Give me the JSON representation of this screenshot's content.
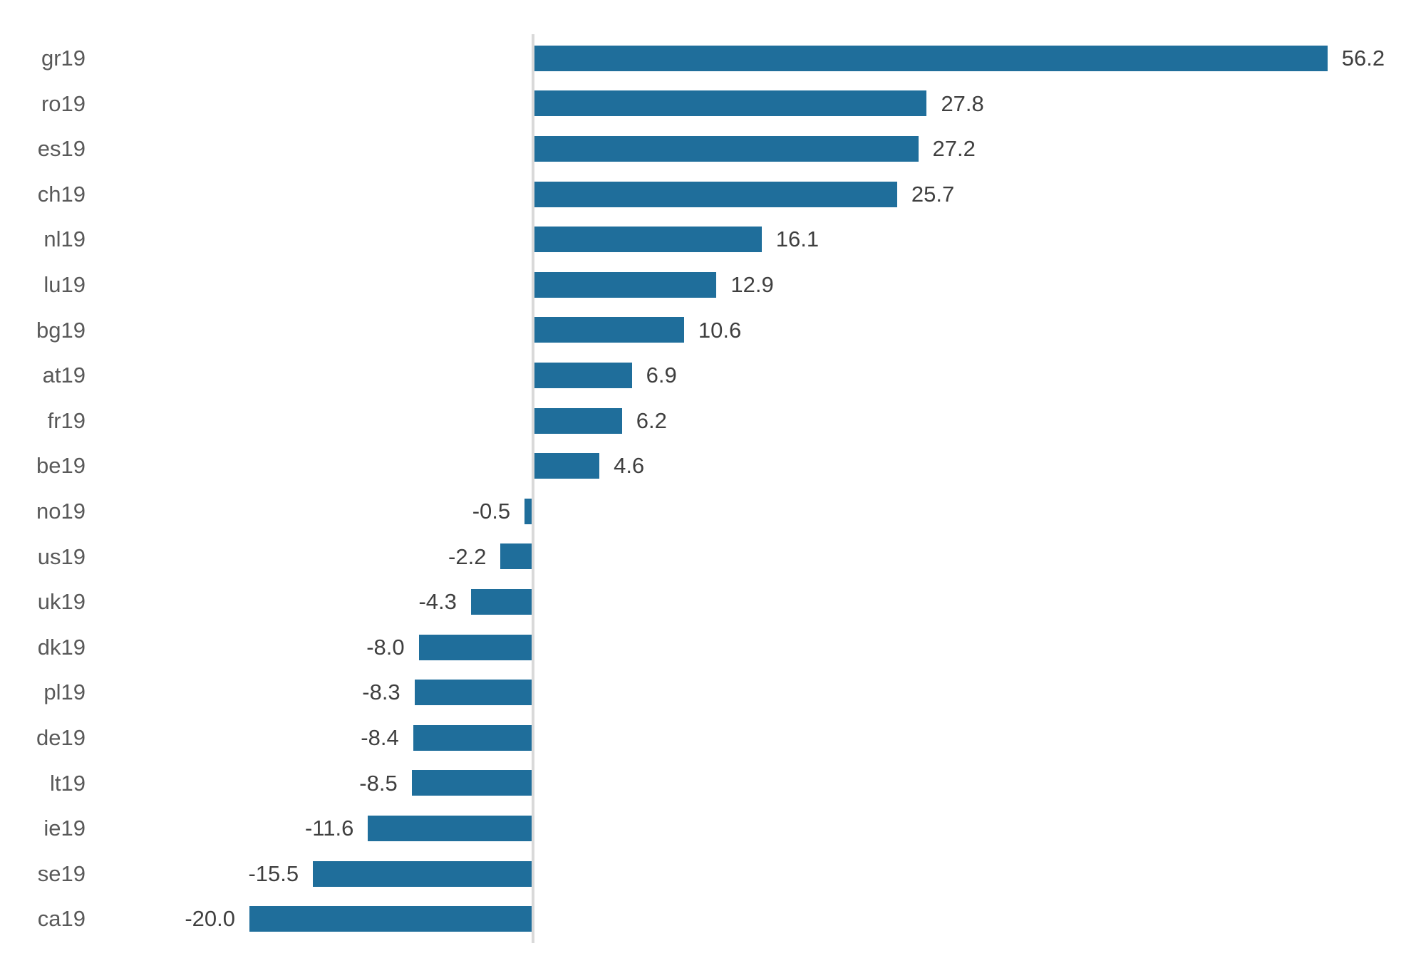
{
  "chart_data": {
    "type": "bar",
    "orientation": "horizontal",
    "title": "",
    "xlabel": "",
    "ylabel": "",
    "grid": false,
    "legend": false,
    "value_labels_shown": true,
    "xlim": [
      -24,
      62
    ],
    "categories": [
      "gr19",
      "ro19",
      "es19",
      "ch19",
      "nl19",
      "lu19",
      "bg19",
      "at19",
      "fr19",
      "be19",
      "no19",
      "us19",
      "uk19",
      "dk19",
      "pl19",
      "de19",
      "lt19",
      "ie19",
      "se19",
      "ca19"
    ],
    "values": [
      56.2,
      27.8,
      27.2,
      25.7,
      16.1,
      12.9,
      10.6,
      6.9,
      6.2,
      4.6,
      -0.5,
      -2.2,
      -4.3,
      -8.0,
      -8.3,
      -8.4,
      -8.5,
      -11.6,
      -15.5,
      -20.0
    ],
    "value_labels": [
      "56.2",
      "27.8",
      "27.2",
      "25.7",
      "16.1",
      "12.9",
      "10.6",
      "6.9",
      "6.2",
      "4.6",
      "-0.5",
      "-2.2",
      "-4.3",
      "-8.0",
      "-8.3",
      "-8.4",
      "-8.5",
      "-11.6",
      "-15.5",
      "-20.0"
    ],
    "colors": {
      "bar": "#1F6E9B",
      "zero_axis": "#D9D9D9",
      "category_label": "#595959",
      "value_label": "#3F3F3F",
      "background": "#FFFFFF"
    }
  }
}
